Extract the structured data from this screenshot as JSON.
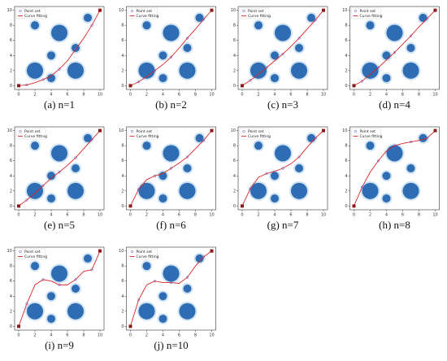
{
  "chart_data": [
    {
      "type": "line",
      "caption": "(a) n=1",
      "xlim": [
        -0.5,
        10.5
      ],
      "ylim": [
        -0.5,
        10.5
      ],
      "xticks": [
        0,
        2,
        4,
        6,
        8,
        10
      ],
      "yticks": [
        0,
        2,
        4,
        6,
        8,
        10
      ],
      "series": [
        {
          "name": "Point set",
          "color": "#6a5acd",
          "x": [
            1,
            3,
            5,
            7,
            9
          ],
          "y": [
            0.1,
            0.8,
            2.2,
            4.8,
            8
          ]
        },
        {
          "name": "Curve fitting",
          "color": "#d62728",
          "x": [
            0,
            1,
            2,
            3,
            4,
            5,
            6,
            7,
            8,
            9,
            10
          ],
          "y": [
            0,
            0.1,
            0.4,
            0.8,
            1.3,
            2.2,
            3.3,
            4.8,
            6.3,
            8,
            10
          ]
        }
      ],
      "obstacles": {
        "x": [
          2,
          5,
          8.5,
          4,
          7,
          2,
          4,
          7
        ],
        "y": [
          8,
          7,
          9,
          4,
          5,
          2,
          1,
          2
        ],
        "r": [
          0.5,
          1,
          0.5,
          0.5,
          0.5,
          1,
          0.5,
          1
        ]
      },
      "endpoints": {
        "x": [
          0,
          10
        ],
        "y": [
          0,
          10
        ]
      }
    },
    {
      "type": "line",
      "caption": "(b) n=2",
      "xlim": [
        -0.5,
        10.5
      ],
      "ylim": [
        -0.5,
        10.5
      ],
      "xticks": [
        0,
        2,
        4,
        6,
        8,
        10
      ],
      "yticks": [
        0,
        2,
        4,
        6,
        8,
        10
      ],
      "series": [
        {
          "name": "Point set",
          "color": "#6a5acd",
          "x": [
            1,
            3,
            5,
            7,
            9
          ],
          "y": [
            0.5,
            2,
            3.8,
            6.3,
            8.8
          ]
        },
        {
          "name": "Curve fitting",
          "color": "#d62728",
          "x": [
            0,
            1,
            2,
            3,
            4,
            5,
            6,
            7,
            8,
            9,
            10
          ],
          "y": [
            0,
            0.5,
            1.2,
            2,
            2.8,
            3.8,
            5,
            6.3,
            7.5,
            8.8,
            10
          ]
        }
      ],
      "obstacles": {
        "x": [
          2,
          5,
          8.5,
          4,
          7,
          2,
          4,
          7
        ],
        "y": [
          8,
          7,
          9,
          4,
          5,
          2,
          1,
          2
        ],
        "r": [
          0.5,
          1,
          0.5,
          0.5,
          0.5,
          1,
          0.5,
          1
        ]
      },
      "endpoints": {
        "x": [
          0,
          10
        ],
        "y": [
          0,
          10
        ]
      }
    },
    {
      "type": "line",
      "caption": "(c) n=3",
      "xlim": [
        -0.5,
        10.5
      ],
      "ylim": [
        -0.5,
        10.5
      ],
      "xticks": [
        0,
        2,
        4,
        6,
        8,
        10
      ],
      "yticks": [
        0,
        2,
        4,
        6,
        8,
        10
      ],
      "series": [
        {
          "name": "Point set",
          "color": "#6a5acd",
          "x": [
            1,
            3,
            5,
            7,
            9
          ],
          "y": [
            0.7,
            2.4,
            4.2,
            6.3,
            8.7
          ]
        },
        {
          "name": "Curve fitting",
          "color": "#d62728",
          "x": [
            0,
            1,
            2,
            3,
            4,
            5,
            6,
            7,
            8,
            9,
            10
          ],
          "y": [
            0,
            0.7,
            1.5,
            2.4,
            3.3,
            4.2,
            5.2,
            6.3,
            7.5,
            8.7,
            10
          ]
        }
      ],
      "obstacles": {
        "x": [
          2,
          5,
          8.5,
          4,
          7,
          2,
          4,
          7
        ],
        "y": [
          8,
          7,
          9,
          4,
          5,
          2,
          1,
          2
        ],
        "r": [
          0.5,
          1,
          0.5,
          0.5,
          0.5,
          1,
          0.5,
          1
        ]
      },
      "endpoints": {
        "x": [
          0,
          10
        ],
        "y": [
          0,
          10
        ]
      }
    },
    {
      "type": "line",
      "caption": "(d) n=4",
      "xlim": [
        -0.5,
        10.5
      ],
      "ylim": [
        -0.5,
        10.5
      ],
      "xticks": [
        0,
        2,
        4,
        6,
        8,
        10
      ],
      "yticks": [
        0,
        2,
        4,
        6,
        8,
        10
      ],
      "series": [
        {
          "name": "Point set",
          "color": "#6a5acd",
          "x": [
            1,
            3,
            5,
            7,
            9
          ],
          "y": [
            0.6,
            2.4,
            4.4,
            6.6,
            8.9
          ]
        },
        {
          "name": "Curve fitting",
          "color": "#d62728",
          "x": [
            0,
            1,
            2,
            3,
            4,
            5,
            6,
            7,
            8,
            9,
            10
          ],
          "y": [
            0,
            0.6,
            1.5,
            2.4,
            3.4,
            4.4,
            5.5,
            6.6,
            7.8,
            8.9,
            10
          ]
        }
      ],
      "obstacles": {
        "x": [
          2,
          5,
          8.5,
          4,
          7,
          2,
          4,
          7
        ],
        "y": [
          8,
          7,
          9,
          4,
          5,
          2,
          1,
          2
        ],
        "r": [
          0.5,
          1,
          0.5,
          0.5,
          0.5,
          1,
          0.5,
          1
        ]
      },
      "endpoints": {
        "x": [
          0,
          10
        ],
        "y": [
          0,
          10
        ]
      }
    },
    {
      "type": "line",
      "caption": "(e) n=5",
      "xlim": [
        -0.5,
        10.5
      ],
      "ylim": [
        -0.5,
        10.5
      ],
      "xticks": [
        0,
        2,
        4,
        6,
        8,
        10
      ],
      "yticks": [
        0,
        2,
        4,
        6,
        8,
        10
      ],
      "series": [
        {
          "name": "Point set",
          "color": "#6a5acd",
          "x": [
            1,
            3,
            5,
            7,
            9
          ],
          "y": [
            0.8,
            2.7,
            4.5,
            6.4,
            8.8
          ]
        },
        {
          "name": "Curve fitting",
          "color": "#d62728",
          "x": [
            0,
            1,
            2,
            3,
            4,
            5,
            6,
            7,
            8,
            9,
            10
          ],
          "y": [
            0,
            0.8,
            1.7,
            2.7,
            3.7,
            4.5,
            5.4,
            6.4,
            7.6,
            8.8,
            10
          ]
        }
      ],
      "obstacles": {
        "x": [
          2,
          5,
          8.5,
          4,
          7,
          2,
          4,
          7
        ],
        "y": [
          8,
          7,
          9,
          4,
          5,
          2,
          1,
          2
        ],
        "r": [
          0.5,
          1,
          0.5,
          0.5,
          0.5,
          1,
          0.5,
          1
        ]
      },
      "endpoints": {
        "x": [
          0,
          10
        ],
        "y": [
          0,
          10
        ]
      }
    },
    {
      "type": "line",
      "caption": "(f) n=6",
      "xlim": [
        -0.5,
        10.5
      ],
      "ylim": [
        -0.5,
        10.5
      ],
      "xticks": [
        0,
        2,
        4,
        6,
        8,
        10
      ],
      "yticks": [
        0,
        2,
        4,
        6,
        8,
        10
      ],
      "series": [
        {
          "name": "Point set",
          "color": "#6a5acd",
          "x": [
            1,
            3,
            5,
            7,
            9
          ],
          "y": [
            2.2,
            4,
            5,
            6.5,
            8.7
          ]
        },
        {
          "name": "Curve fitting",
          "color": "#d62728",
          "x": [
            0,
            1,
            2,
            3,
            4,
            5,
            6,
            7,
            8,
            9,
            10
          ],
          "y": [
            0,
            2.2,
            3.5,
            4,
            4.3,
            5,
            5.7,
            6.5,
            7.6,
            8.7,
            10
          ]
        }
      ],
      "obstacles": {
        "x": [
          2,
          5,
          8.5,
          4,
          7,
          2,
          4,
          7
        ],
        "y": [
          8,
          7,
          9,
          4,
          5,
          2,
          1,
          2
        ],
        "r": [
          0.5,
          1,
          0.5,
          0.5,
          0.5,
          1,
          0.5,
          1
        ]
      },
      "endpoints": {
        "x": [
          0,
          10
        ],
        "y": [
          0,
          10
        ]
      }
    },
    {
      "type": "line",
      "caption": "(g) n=7",
      "xlim": [
        -0.5,
        10.5
      ],
      "ylim": [
        -0.5,
        10.5
      ],
      "xticks": [
        0,
        2,
        4,
        6,
        8,
        10
      ],
      "yticks": [
        0,
        2,
        4,
        6,
        8,
        10
      ],
      "series": [
        {
          "name": "Point set",
          "color": "#6a5acd",
          "x": [
            1,
            3,
            5,
            7,
            9
          ],
          "y": [
            2.3,
            4.3,
            5,
            6.5,
            9
          ]
        },
        {
          "name": "Curve fitting",
          "color": "#d62728",
          "x": [
            0,
            1,
            2,
            3,
            4,
            5,
            6,
            7,
            8,
            9,
            10
          ],
          "y": [
            0,
            2.3,
            3.8,
            4.3,
            4.6,
            5,
            5.6,
            6.5,
            7.8,
            9,
            10
          ]
        }
      ],
      "obstacles": {
        "x": [
          2,
          5,
          8.5,
          4,
          7,
          2,
          4,
          7
        ],
        "y": [
          8,
          7,
          9,
          4,
          5,
          2,
          1,
          2
        ],
        "r": [
          0.5,
          1,
          0.5,
          0.5,
          0.5,
          1,
          0.5,
          1
        ]
      },
      "endpoints": {
        "x": [
          0,
          10
        ],
        "y": [
          0,
          10
        ]
      }
    },
    {
      "type": "line",
      "caption": "(h) n=8",
      "xlim": [
        -0.5,
        10.5
      ],
      "ylim": [
        -0.5,
        10.5
      ],
      "xticks": [
        0,
        2,
        4,
        6,
        8,
        10
      ],
      "yticks": [
        0,
        2,
        4,
        6,
        8,
        10
      ],
      "series": [
        {
          "name": "Point set",
          "color": "#6a5acd",
          "x": [
            1,
            3,
            5,
            7,
            9
          ],
          "y": [
            2.5,
            6,
            8,
            8.5,
            9
          ]
        },
        {
          "name": "Curve fitting",
          "color": "#d62728",
          "x": [
            0,
            1,
            2,
            3,
            4,
            5,
            6,
            7,
            8,
            9,
            10
          ],
          "y": [
            0,
            2.5,
            4.5,
            6,
            7.3,
            8,
            8.3,
            8.5,
            8.7,
            9,
            10
          ]
        }
      ],
      "obstacles": {
        "x": [
          2,
          5,
          8.5,
          4,
          7,
          2,
          4,
          7
        ],
        "y": [
          8,
          7,
          9,
          4,
          5,
          2,
          1,
          2
        ],
        "r": [
          0.5,
          1,
          0.5,
          0.5,
          0.5,
          1,
          0.5,
          1
        ]
      },
      "endpoints": {
        "x": [
          0,
          10
        ],
        "y": [
          0,
          10
        ]
      }
    },
    {
      "type": "line",
      "caption": "(i) n=9",
      "xlim": [
        -0.5,
        10.5
      ],
      "ylim": [
        -0.5,
        10.5
      ],
      "xticks": [
        0,
        2,
        4,
        6,
        8,
        10
      ],
      "yticks": [
        0,
        2,
        4,
        6,
        8,
        10
      ],
      "series": [
        {
          "name": "Point set",
          "color": "#6a5acd",
          "x": [
            1,
            3,
            5,
            7,
            9
          ],
          "y": [
            3,
            6.2,
            5.5,
            6.2,
            7.5
          ]
        },
        {
          "name": "Curve fitting",
          "color": "#d62728",
          "x": [
            0,
            1,
            2,
            3,
            4,
            5,
            6,
            7,
            8,
            9,
            10
          ],
          "y": [
            0,
            3,
            5.5,
            6.2,
            6,
            5.5,
            5.5,
            6.2,
            7.3,
            7.5,
            10
          ]
        }
      ],
      "obstacles": {
        "x": [
          2,
          5,
          8.5,
          4,
          7,
          2,
          4,
          7
        ],
        "y": [
          8,
          7,
          9,
          4,
          5,
          2,
          1,
          2
        ],
        "r": [
          0.5,
          1,
          0.5,
          0.5,
          0.5,
          1,
          0.5,
          1
        ]
      },
      "endpoints": {
        "x": [
          0,
          10
        ],
        "y": [
          0,
          10
        ]
      }
    },
    {
      "type": "line",
      "caption": "(j) n=10",
      "xlim": [
        -0.5,
        10.5
      ],
      "ylim": [
        -0.5,
        10.5
      ],
      "xticks": [
        0,
        2,
        4,
        6,
        8,
        10
      ],
      "yticks": [
        0,
        2,
        4,
        6,
        8,
        10
      ],
      "series": [
        {
          "name": "Point set",
          "color": "#6a5acd",
          "x": [
            1,
            3,
            5,
            7,
            9
          ],
          "y": [
            3.5,
            6,
            5.8,
            6.5,
            9.2
          ]
        },
        {
          "name": "Curve fitting",
          "color": "#d62728",
          "x": [
            0,
            1,
            2,
            3,
            4,
            5,
            6,
            7,
            8,
            9,
            10
          ],
          "y": [
            0,
            3.5,
            5.5,
            6,
            5.8,
            5.8,
            5.7,
            6.5,
            8,
            9.2,
            10
          ]
        }
      ],
      "obstacles": {
        "x": [
          2,
          5,
          8.5,
          4,
          7,
          2,
          4,
          7
        ],
        "y": [
          8,
          7,
          9,
          4,
          5,
          2,
          1,
          2
        ],
        "r": [
          0.5,
          1,
          0.5,
          0.5,
          0.5,
          1,
          0.5,
          1
        ]
      },
      "endpoints": {
        "x": [
          0,
          10
        ],
        "y": [
          0,
          10
        ]
      }
    }
  ]
}
